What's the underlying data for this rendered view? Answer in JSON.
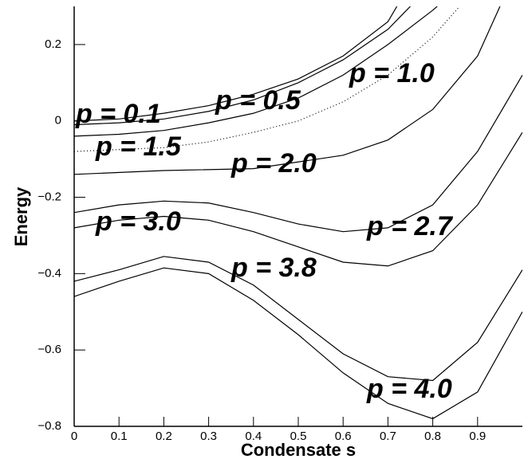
{
  "chart_data": {
    "type": "line",
    "xlabel": "Condensate s",
    "ylabel": "Energy",
    "xlim": [
      0,
      1
    ],
    "ylim": [
      -0.8,
      0.3
    ],
    "xticks": [
      0,
      0.1,
      0.2,
      0.3,
      0.4,
      0.5,
      0.6,
      0.7,
      0.8,
      0.9
    ],
    "yticks": [
      {
        "value": -0.8,
        "label": "−0.8"
      },
      {
        "value": -0.6,
        "label": "−0.6"
      },
      {
        "value": -0.4,
        "label": "−0.4"
      },
      {
        "value": -0.2,
        "label": "−0.2"
      },
      0,
      0.2
    ],
    "series": [
      {
        "name": "p = 0.1",
        "color": "#000000",
        "linestyle": "solid",
        "x": [
          0,
          0.1,
          0.2,
          0.3,
          0.4,
          0.5,
          0.6,
          0.7,
          0.72
        ],
        "values": [
          0.0,
          0.005,
          0.02,
          0.04,
          0.07,
          0.11,
          0.17,
          0.26,
          0.3
        ]
      },
      {
        "name": "p = 0.5",
        "color": "#000000",
        "linestyle": "solid",
        "x": [
          0,
          0.1,
          0.2,
          0.3,
          0.4,
          0.5,
          0.6,
          0.7,
          0.75
        ],
        "values": [
          -0.01,
          -0.005,
          0.005,
          0.025,
          0.055,
          0.1,
          0.16,
          0.24,
          0.3
        ]
      },
      {
        "name": "p = 1.0",
        "color": "#000000",
        "linestyle": "solid",
        "x": [
          0,
          0.1,
          0.2,
          0.3,
          0.4,
          0.5,
          0.6,
          0.7,
          0.8,
          0.81
        ],
        "values": [
          -0.04,
          -0.035,
          -0.025,
          -0.005,
          0.02,
          0.06,
          0.12,
          0.2,
          0.29,
          0.3
        ]
      },
      {
        "name": "p = 1.5",
        "color": "#000000",
        "linestyle": "dotted",
        "x": [
          0,
          0.1,
          0.2,
          0.3,
          0.4,
          0.5,
          0.6,
          0.7,
          0.8,
          0.86
        ],
        "values": [
          -0.08,
          -0.075,
          -0.07,
          -0.055,
          -0.03,
          0.0,
          0.05,
          0.12,
          0.22,
          0.3
        ]
      },
      {
        "name": "p = 2.0",
        "color": "#000000",
        "linestyle": "solid",
        "x": [
          0,
          0.2,
          0.4,
          0.6,
          0.7,
          0.8,
          0.9,
          0.95
        ],
        "values": [
          -0.14,
          -0.13,
          -0.125,
          -0.09,
          -0.05,
          0.03,
          0.17,
          0.3
        ]
      },
      {
        "name": "p = 2.7",
        "color": "#000000",
        "linestyle": "solid",
        "x": [
          0,
          0.1,
          0.2,
          0.3,
          0.4,
          0.5,
          0.6,
          0.7,
          0.8,
          0.9,
          1.0
        ],
        "values": [
          -0.24,
          -0.22,
          -0.21,
          -0.215,
          -0.24,
          -0.27,
          -0.29,
          -0.28,
          -0.22,
          -0.08,
          0.12
        ]
      },
      {
        "name": "p = 3.0",
        "color": "#000000",
        "linestyle": "solid",
        "x": [
          0,
          0.1,
          0.2,
          0.3,
          0.4,
          0.5,
          0.6,
          0.7,
          0.8,
          0.9,
          1.0
        ],
        "values": [
          -0.28,
          -0.26,
          -0.25,
          -0.26,
          -0.29,
          -0.33,
          -0.37,
          -0.38,
          -0.34,
          -0.22,
          -0.03
        ]
      },
      {
        "name": "p = 3.8",
        "color": "#000000",
        "linestyle": "solid",
        "x": [
          0,
          0.1,
          0.2,
          0.3,
          0.4,
          0.5,
          0.6,
          0.7,
          0.8,
          0.9,
          1.0
        ],
        "values": [
          -0.42,
          -0.39,
          -0.355,
          -0.37,
          -0.43,
          -0.52,
          -0.61,
          -0.67,
          -0.68,
          -0.58,
          -0.39
        ]
      },
      {
        "name": "p = 4.0",
        "color": "#000000",
        "linestyle": "solid",
        "x": [
          0,
          0.1,
          0.2,
          0.3,
          0.4,
          0.5,
          0.6,
          0.7,
          0.8,
          0.9,
          1.0
        ],
        "values": [
          -0.46,
          -0.42,
          -0.385,
          -0.4,
          -0.47,
          -0.56,
          -0.66,
          -0.74,
          -0.78,
          -0.71,
          -0.5
        ]
      }
    ]
  }
}
